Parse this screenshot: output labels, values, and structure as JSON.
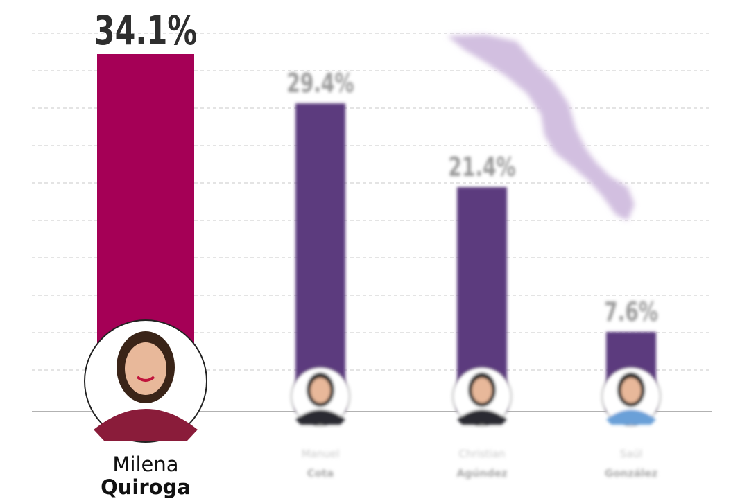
{
  "chart_data": {
    "type": "bar",
    "first_names": [
      "Milena",
      "Manuel",
      "Christian",
      "Saúl"
    ],
    "last_names": [
      "Quiroga",
      "Cota",
      "Agúndez",
      "González"
    ],
    "values": [
      34.1,
      29.4,
      21.4,
      7.6
    ],
    "value_labels": [
      "34.1%",
      "29.4%",
      "21.4%",
      "7.6%"
    ],
    "colors": [
      "#a50056",
      "#5b3a7e",
      "#5b3a7e",
      "#5b3a7e"
    ]
  }
}
